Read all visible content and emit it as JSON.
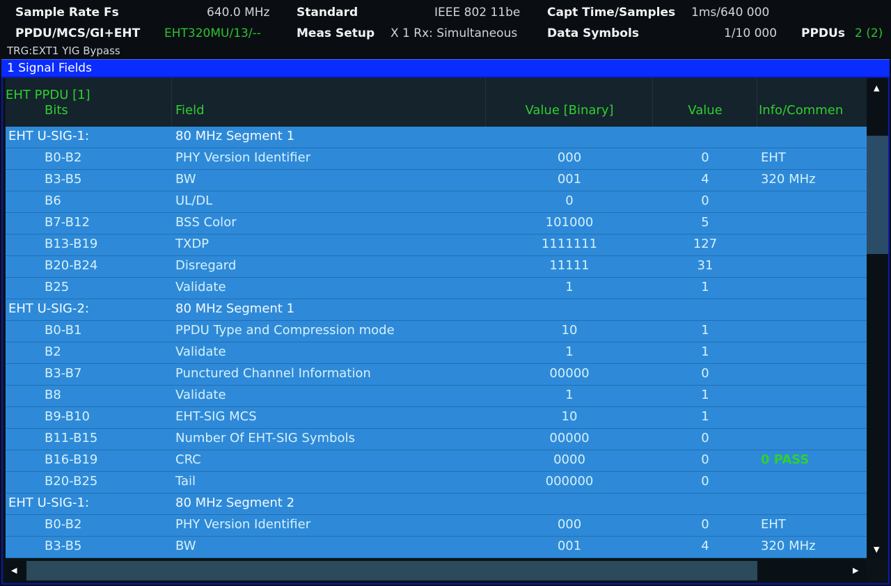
{
  "header": {
    "sample_rate_label": "Sample Rate Fs",
    "sample_rate_value": "640.0 MHz",
    "standard_label": "Standard",
    "standard_value": "IEEE 802 11be",
    "capt_label": "Capt Time/Samples",
    "capt_value": "1ms/640 000",
    "ppdu_label": "PPDU/MCS/GI+EHT",
    "ppdu_value": "EHT320MU/13/--",
    "meas_label": "Meas Setup",
    "meas_value": "X 1 Rx: Simultaneous",
    "data_symbols_label": "Data Symbols",
    "data_symbols_value": "1/10 000",
    "ppdus_label": "PPDUs",
    "ppdus_value": "2 (2)",
    "trigger": "TRG:EXT1  YIG Bypass"
  },
  "window_title": "1 Signal Fields",
  "table": {
    "headers": {
      "col1_line1": "EHT  PPDU [1]",
      "col1_line2": "Bits",
      "field": "Field",
      "value_binary": "Value [Binary]",
      "value": "Value",
      "info": "Info/Commen"
    },
    "rows": [
      {
        "group": "EHT U-SIG-1:",
        "segment": "80 MHz Segment 1"
      },
      {
        "bits": "B0-B2",
        "field": "PHY Version Identifier",
        "bin": "000",
        "val": "0",
        "info": "EHT"
      },
      {
        "bits": "B3-B5",
        "field": "BW",
        "bin": "001",
        "val": "4",
        "info": "320 MHz"
      },
      {
        "bits": "B6",
        "field": "UL/DL",
        "bin": "0",
        "val": "0",
        "info": ""
      },
      {
        "bits": "B7-B12",
        "field": "BSS Color",
        "bin": "101000",
        "val": "5",
        "info": ""
      },
      {
        "bits": "B13-B19",
        "field": "TXDP",
        "bin": "1111111",
        "val": "127",
        "info": ""
      },
      {
        "bits": "B20-B24",
        "field": "Disregard",
        "bin": "11111",
        "val": "31",
        "info": ""
      },
      {
        "bits": "B25",
        "field": "Validate",
        "bin": "1",
        "val": "1",
        "info": ""
      },
      {
        "group": "EHT U-SIG-2:",
        "segment": "80 MHz Segment 1"
      },
      {
        "bits": "B0-B1",
        "field": "PPDU Type and Compression mode",
        "bin": "10",
        "val": "1",
        "info": ""
      },
      {
        "bits": "B2",
        "field": "Validate",
        "bin": "1",
        "val": "1",
        "info": ""
      },
      {
        "bits": "B3-B7",
        "field": "Punctured Channel Information",
        "bin": "00000",
        "val": "0",
        "info": ""
      },
      {
        "bits": "B8",
        "field": "Validate",
        "bin": "1",
        "val": "1",
        "info": ""
      },
      {
        "bits": "B9-B10",
        "field": "EHT-SIG MCS",
        "bin": "10",
        "val": "1",
        "info": ""
      },
      {
        "bits": "B11-B15",
        "field": "Number Of EHT-SIG Symbols",
        "bin": "00000",
        "val": "0",
        "info": ""
      },
      {
        "bits": "B16-B19",
        "field": "CRC",
        "bin": "0000",
        "val": "0",
        "info": "0 PASS",
        "status": "pass"
      },
      {
        "bits": "B20-B25",
        "field": "Tail",
        "bin": "000000",
        "val": "0",
        "info": ""
      },
      {
        "group": "EHT U-SIG-1:",
        "segment": "80 MHz Segment 2"
      },
      {
        "bits": "B0-B2",
        "field": "PHY Version Identifier",
        "bin": "000",
        "val": "0",
        "info": "EHT"
      },
      {
        "bits": "B3-B5",
        "field": "BW",
        "bin": "001",
        "val": "4",
        "info": "320 MHz"
      }
    ]
  },
  "colors": {
    "pass": "#2fd12f",
    "row_bg": "#2e8ad8",
    "title_bar": "#0a2cff",
    "header_text": "#2fcf2f"
  }
}
